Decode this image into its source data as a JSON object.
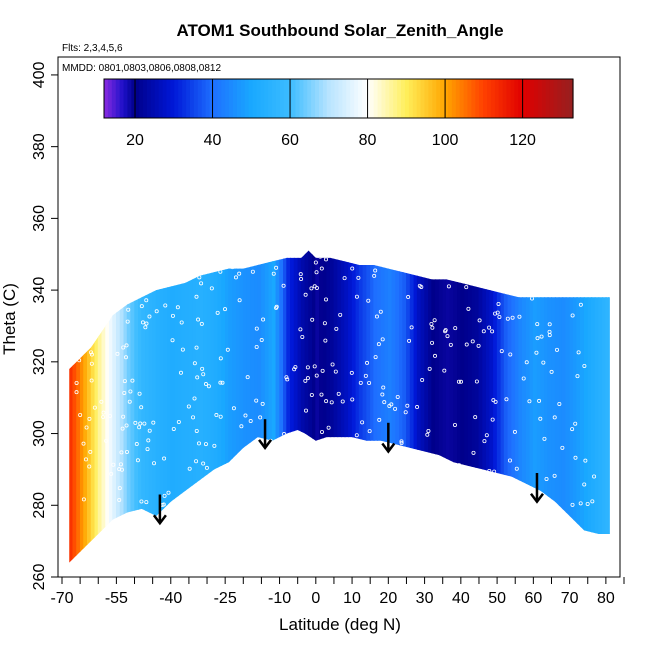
{
  "chart_data": {
    "type": "heatmap",
    "title": "ATOM1 Southbound Solar_Zenith_Angle",
    "flights_note": "Flts: 2,3,4,5,6",
    "dates_note": "MMDD: 0801,0803,0806,0808,0812",
    "xlabel": "Latitude (deg N)",
    "ylabel": "Theta (C)",
    "xlim": [
      -70,
      85
    ],
    "ylim": [
      260,
      405
    ],
    "x_ticks": [
      -70,
      -55,
      -40,
      -25,
      -10,
      0,
      10,
      20,
      30,
      40,
      50,
      60,
      70,
      80
    ],
    "x_minor_ticks": [
      -65,
      -60,
      -50,
      -45,
      -35,
      -30,
      -20,
      -15,
      -5,
      5,
      15,
      25,
      35,
      45,
      55,
      65,
      75,
      85
    ],
    "y_ticks": [
      260,
      280,
      300,
      320,
      340,
      360,
      380,
      400
    ],
    "colorbar": {
      "min": 12,
      "max": 133,
      "ticks": [
        20,
        40,
        60,
        80,
        100,
        120
      ],
      "colors": [
        {
          "v": 12,
          "c": "#8a2be2"
        },
        {
          "v": 17,
          "c": "#1c10c8"
        },
        {
          "v": 20,
          "c": "#00008b"
        },
        {
          "v": 30,
          "c": "#0018d8"
        },
        {
          "v": 40,
          "c": "#1e6fff"
        },
        {
          "v": 50,
          "c": "#19a8ff"
        },
        {
          "v": 60,
          "c": "#3cbcff"
        },
        {
          "v": 70,
          "c": "#b8e4ff"
        },
        {
          "v": 80,
          "c": "#ffffff"
        },
        {
          "v": 90,
          "c": "#ffef5a"
        },
        {
          "v": 100,
          "c": "#ffa500"
        },
        {
          "v": 110,
          "c": "#ff4000"
        },
        {
          "v": 120,
          "c": "#e00000"
        },
        {
          "v": 133,
          "c": "#962020"
        }
      ]
    },
    "field": [
      {
        "lat": -68,
        "sza": 112
      },
      {
        "lat": -64,
        "sza": 99
      },
      {
        "lat": -60,
        "sza": 86
      },
      {
        "lat": -56,
        "sza": 75
      },
      {
        "lat": -52,
        "sza": 64
      },
      {
        "lat": -48,
        "sza": 57
      },
      {
        "lat": -44,
        "sza": 54
      },
      {
        "lat": -40,
        "sza": 52
      },
      {
        "lat": -36,
        "sza": 53
      },
      {
        "lat": -32,
        "sza": 54
      },
      {
        "lat": -28,
        "sza": 52
      },
      {
        "lat": -24,
        "sza": 48
      },
      {
        "lat": -20,
        "sza": 46
      },
      {
        "lat": -16,
        "sza": 45
      },
      {
        "lat": -12,
        "sza": 50
      },
      {
        "lat": -8,
        "sza": 32
      },
      {
        "lat": -4,
        "sza": 24
      },
      {
        "lat": 0,
        "sza": 19
      },
      {
        "lat": 4,
        "sza": 22
      },
      {
        "lat": 8,
        "sza": 27
      },
      {
        "lat": 12,
        "sza": 34
      },
      {
        "lat": 16,
        "sza": 40
      },
      {
        "lat": 20,
        "sza": 43
      },
      {
        "lat": 24,
        "sza": 38
      },
      {
        "lat": 28,
        "sza": 27
      },
      {
        "lat": 32,
        "sza": 20
      },
      {
        "lat": 36,
        "sza": 19
      },
      {
        "lat": 40,
        "sza": 20
      },
      {
        "lat": 44,
        "sza": 22
      },
      {
        "lat": 48,
        "sza": 28
      },
      {
        "lat": 52,
        "sza": 38
      },
      {
        "lat": 56,
        "sza": 44
      },
      {
        "lat": 60,
        "sza": 48
      },
      {
        "lat": 64,
        "sza": 46
      },
      {
        "lat": 68,
        "sza": 45
      },
      {
        "lat": 72,
        "sza": 48
      },
      {
        "lat": 76,
        "sza": 52
      },
      {
        "lat": 80,
        "sza": 56
      }
    ],
    "bottom_boundary": [
      [
        -68,
        264
      ],
      [
        -64,
        268
      ],
      [
        -60,
        272
      ],
      [
        -56,
        276
      ],
      [
        -52,
        278
      ],
      [
        -48,
        279
      ],
      [
        -44,
        277
      ],
      [
        -40,
        281
      ],
      [
        -36,
        284
      ],
      [
        -32,
        287
      ],
      [
        -28,
        290
      ],
      [
        -24,
        292
      ],
      [
        -20,
        296
      ],
      [
        -16,
        299
      ],
      [
        -12,
        298
      ],
      [
        -8,
        300
      ],
      [
        -5,
        301
      ],
      [
        -3,
        300
      ],
      [
        0,
        298
      ],
      [
        3,
        299
      ],
      [
        6,
        299
      ],
      [
        10,
        299
      ],
      [
        14,
        298
      ],
      [
        18,
        298
      ],
      [
        22,
        297
      ],
      [
        26,
        296
      ],
      [
        30,
        295
      ],
      [
        34,
        294
      ],
      [
        38,
        292
      ],
      [
        42,
        291
      ],
      [
        46,
        290
      ],
      [
        50,
        289
      ],
      [
        54,
        288
      ],
      [
        58,
        286
      ],
      [
        62,
        284
      ],
      [
        66,
        281
      ],
      [
        70,
        277
      ],
      [
        74,
        273
      ],
      [
        78,
        272
      ],
      [
        80,
        272
      ]
    ],
    "top_boundary": [
      [
        -68,
        318
      ],
      [
        -66,
        320
      ],
      [
        -64,
        322
      ],
      [
        -62,
        324
      ],
      [
        -60,
        327
      ],
      [
        -58,
        330
      ],
      [
        -56,
        333
      ],
      [
        -52,
        336
      ],
      [
        -48,
        338
      ],
      [
        -44,
        340
      ],
      [
        -40,
        341
      ],
      [
        -36,
        342
      ],
      [
        -32,
        344
      ],
      [
        -28,
        345
      ],
      [
        -24,
        346
      ],
      [
        -20,
        346
      ],
      [
        -16,
        347
      ],
      [
        -12,
        348
      ],
      [
        -8,
        349
      ],
      [
        -4,
        349
      ],
      [
        -2,
        351
      ],
      [
        0,
        349
      ],
      [
        4,
        349
      ],
      [
        8,
        348
      ],
      [
        12,
        347
      ],
      [
        16,
        347
      ],
      [
        20,
        346
      ],
      [
        24,
        345
      ],
      [
        28,
        344
      ],
      [
        32,
        343
      ],
      [
        36,
        343
      ],
      [
        40,
        342
      ],
      [
        44,
        341
      ],
      [
        48,
        340
      ],
      [
        52,
        339
      ],
      [
        56,
        338
      ],
      [
        60,
        338
      ],
      [
        64,
        338
      ],
      [
        68,
        338
      ],
      [
        72,
        338
      ],
      [
        76,
        338
      ],
      [
        80,
        338
      ]
    ],
    "arrows": [
      {
        "lat": -43,
        "theta_top": 283,
        "theta_tip": 275
      },
      {
        "lat": -14,
        "theta_top": 304,
        "theta_tip": 296
      },
      {
        "lat": 20,
        "theta_top": 303,
        "theta_tip": 295
      },
      {
        "lat": 61,
        "theta_top": 289,
        "theta_tip": 281
      }
    ],
    "grid": false,
    "legend": "colorbar top, inside plot"
  }
}
